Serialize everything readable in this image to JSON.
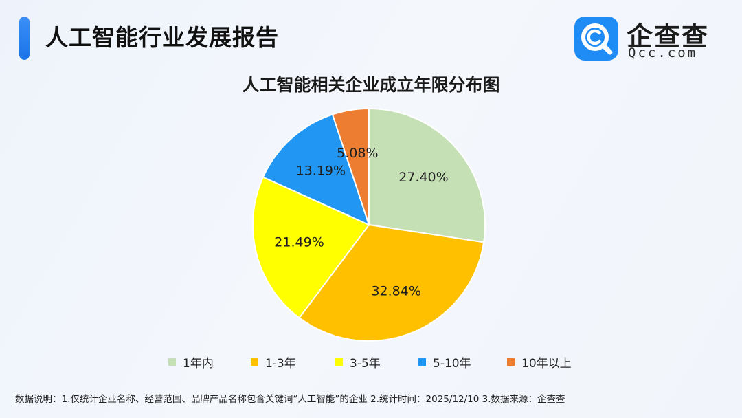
{
  "header": {
    "title": "人工智能行业发展报告"
  },
  "logo": {
    "name": "企查查",
    "subtitle": "Qcc.com"
  },
  "chart_data": {
    "type": "pie",
    "title": "人工智能相关企业成立年限分布图",
    "categories": [
      "1年内",
      "1-3年",
      "3-5年",
      "5-10年",
      "10年以上"
    ],
    "values": [
      27.4,
      32.84,
      21.49,
      13.19,
      5.08
    ],
    "value_labels": [
      "27.40%",
      "32.84%",
      "21.49%",
      "13.19%",
      "5.08%"
    ],
    "colors": [
      "#c5e0b4",
      "#ffc000",
      "#ffff00",
      "#2196f3",
      "#ed7d31"
    ],
    "start": "12 o'clock",
    "direction": "clockwise",
    "legend": "bottom"
  },
  "footnote": "数据说明：1.仅统计企业名称、经营范围、品牌产品名称包含关键词“人工智能”的企业   2.统计时间：2025/12/10    3.数据来源：企查查"
}
